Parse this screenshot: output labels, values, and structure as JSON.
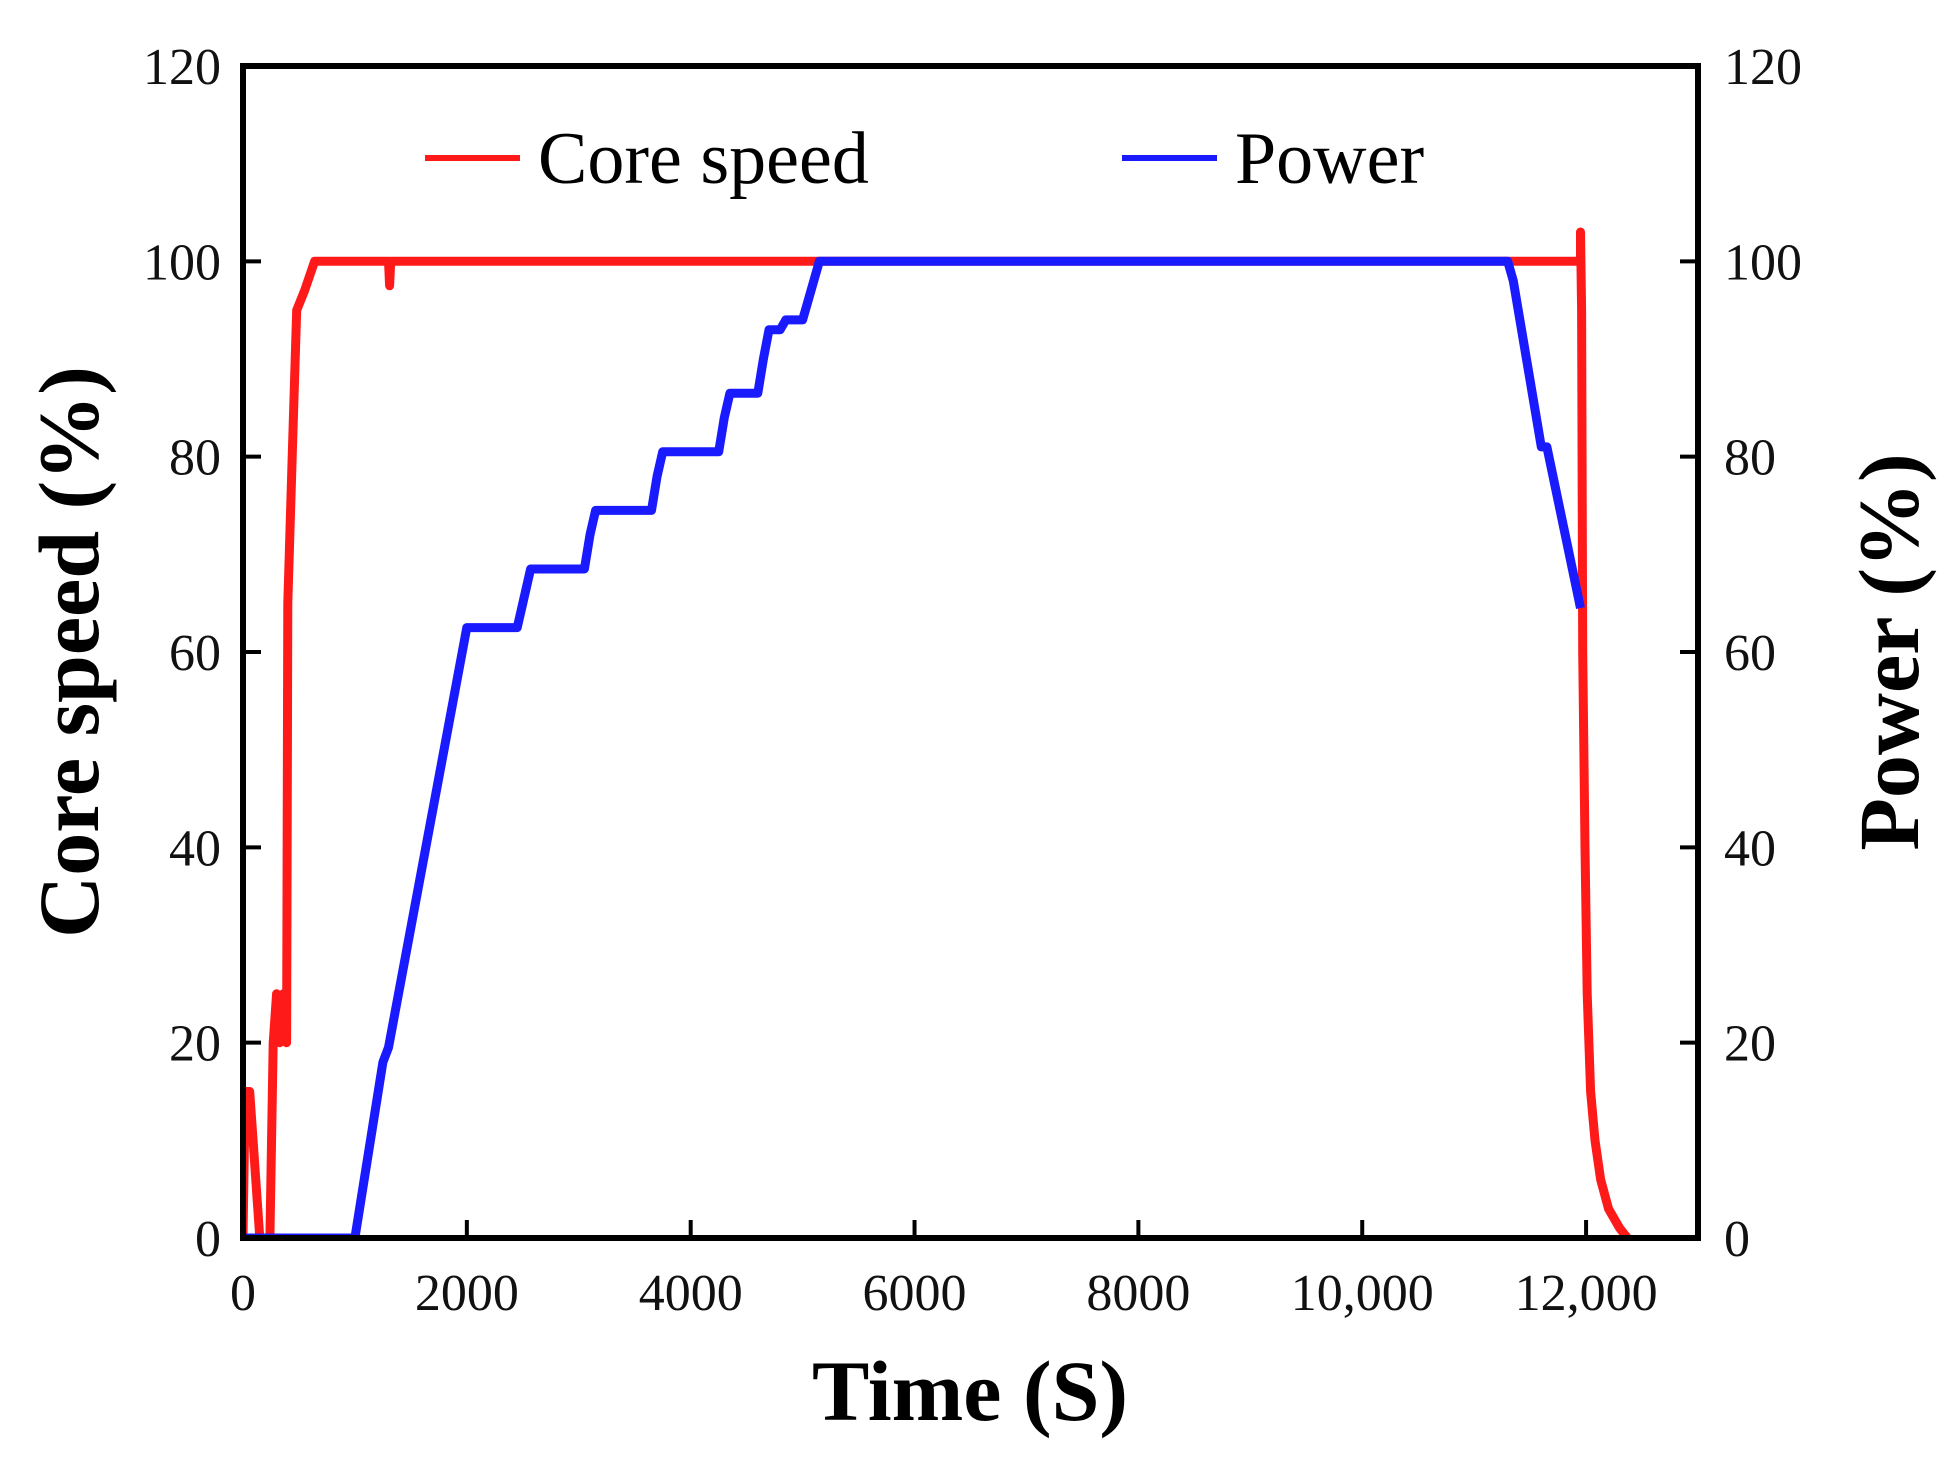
{
  "chart_data": {
    "type": "line",
    "title": "",
    "xlabel": "Time (S)",
    "ylabel_left": "Core speed (%)",
    "ylabel_right": "Power (%)",
    "xlim": [
      0,
      13000
    ],
    "ylim": [
      0,
      120
    ],
    "x_ticks": [
      0,
      2000,
      4000,
      6000,
      8000,
      10000,
      12000
    ],
    "x_tick_labels": [
      "0",
      "2000",
      "4000",
      "6000",
      "8000",
      "10,000",
      "12,000"
    ],
    "y_ticks": [
      0,
      20,
      40,
      60,
      80,
      100,
      120
    ],
    "y_tick_labels": [
      "0",
      "20",
      "40",
      "60",
      "80",
      "100",
      "120"
    ],
    "grid": false,
    "legend_position": "top",
    "series": [
      {
        "name": "Core speed",
        "axis": "left",
        "color": "#ff1a1a",
        "points": [
          [
            0,
            0
          ],
          [
            20,
            15
          ],
          [
            60,
            15
          ],
          [
            150,
            0
          ],
          [
            240,
            0
          ],
          [
            270,
            20
          ],
          [
            300,
            25
          ],
          [
            330,
            20
          ],
          [
            360,
            25
          ],
          [
            390,
            20
          ],
          [
            400,
            65
          ],
          [
            440,
            80
          ],
          [
            480,
            95
          ],
          [
            550,
            97
          ],
          [
            640,
            100
          ],
          [
            1300,
            100
          ],
          [
            1310,
            97.5
          ],
          [
            1320,
            100
          ],
          [
            11950,
            100
          ],
          [
            11950,
            103
          ],
          [
            11960,
            95
          ],
          [
            11970,
            60
          ],
          [
            11990,
            40
          ],
          [
            12010,
            25
          ],
          [
            12040,
            15
          ],
          [
            12080,
            10
          ],
          [
            12130,
            6
          ],
          [
            12200,
            3
          ],
          [
            12300,
            1
          ],
          [
            12370,
            0
          ]
        ]
      },
      {
        "name": "Power",
        "axis": "right",
        "color": "#1a1aff",
        "points": [
          [
            0,
            0
          ],
          [
            930,
            0
          ],
          [
            1000,
            0
          ],
          [
            1250,
            18
          ],
          [
            1300,
            19.5
          ],
          [
            2000,
            62.5
          ],
          [
            2450,
            62.5
          ],
          [
            2500,
            65
          ],
          [
            2570,
            68.5
          ],
          [
            3050,
            68.5
          ],
          [
            3100,
            72
          ],
          [
            3150,
            74.5
          ],
          [
            3650,
            74.5
          ],
          [
            3700,
            78
          ],
          [
            3750,
            80.5
          ],
          [
            4250,
            80.5
          ],
          [
            4300,
            84
          ],
          [
            4350,
            86.5
          ],
          [
            4600,
            86.5
          ],
          [
            4650,
            90
          ],
          [
            4700,
            93
          ],
          [
            4800,
            93
          ],
          [
            4850,
            94
          ],
          [
            5000,
            94
          ],
          [
            5050,
            96
          ],
          [
            5150,
            100
          ],
          [
            11300,
            100
          ],
          [
            11350,
            98
          ],
          [
            11600,
            81
          ],
          [
            11650,
            81
          ],
          [
            11950,
            64.5
          ]
        ]
      }
    ]
  }
}
